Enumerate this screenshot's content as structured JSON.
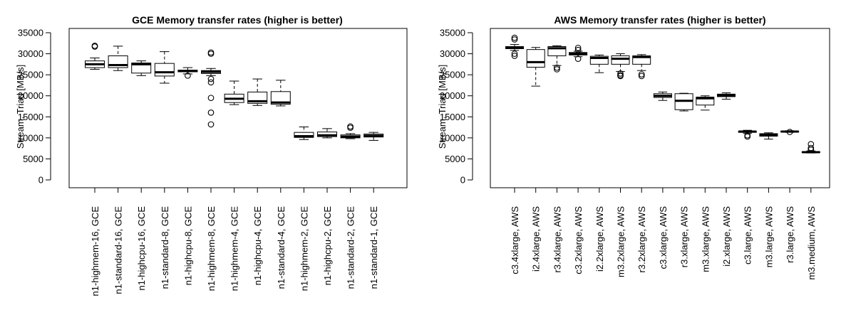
{
  "chart_data": [
    {
      "type": "boxplot",
      "title": "GCE Memory transfer rates (higher is better)",
      "ylabel": "Stream, Triad [MB/s]",
      "xlabel": "",
      "ylim": [
        0,
        35000
      ],
      "yticks": [
        0,
        5000,
        10000,
        15000,
        20000,
        25000,
        30000,
        35000
      ],
      "grid": false,
      "categories": [
        "n1-highmem-16, GCE",
        "n1-standard-16, GCE",
        "n1-highcpu-16, GCE",
        "n1-standard-8, GCE",
        "n1-highcpu-8, GCE",
        "n1-highmem-8, GCE",
        "n1-highmem-4, GCE",
        "n1-highcpu-4, GCE",
        "n1-standard-4, GCE",
        "n1-highmem-2, GCE",
        "n1-highcpu-2, GCE",
        "n1-standard-2, GCE",
        "n1-standard-1, GCE"
      ],
      "boxes": [
        {
          "min": 26300,
          "q1": 26700,
          "median": 27500,
          "q3": 28300,
          "max": 29000,
          "outliers": [
            31700,
            31900
          ]
        },
        {
          "min": 26000,
          "q1": 26700,
          "median": 27300,
          "q3": 29500,
          "max": 31800,
          "outliers": []
        },
        {
          "min": 24800,
          "q1": 25400,
          "median": 27500,
          "q3": 27800,
          "max": 28300,
          "outliers": []
        },
        {
          "min": 23000,
          "q1": 24700,
          "median": 25600,
          "q3": 27700,
          "max": 30500,
          "outliers": []
        },
        {
          "min": 25200,
          "q1": 25700,
          "median": 25900,
          "q3": 26100,
          "max": 26700,
          "outliers": [
            24800
          ]
        },
        {
          "min": 24800,
          "q1": 25300,
          "median": 25700,
          "q3": 26000,
          "max": 26500,
          "outliers": [
            30000,
            30300,
            24000,
            23200,
            19500,
            16000,
            13200
          ]
        },
        {
          "min": 17900,
          "q1": 18400,
          "median": 19300,
          "q3": 20400,
          "max": 23500,
          "outliers": []
        },
        {
          "min": 17700,
          "q1": 18200,
          "median": 18700,
          "q3": 20900,
          "max": 24000,
          "outliers": []
        },
        {
          "min": 17600,
          "q1": 18000,
          "median": 18400,
          "q3": 21000,
          "max": 23700,
          "outliers": []
        },
        {
          "min": 9600,
          "q1": 10100,
          "median": 10400,
          "q3": 11300,
          "max": 12600,
          "outliers": []
        },
        {
          "min": 10000,
          "q1": 10300,
          "median": 10600,
          "q3": 11400,
          "max": 12200,
          "outliers": []
        },
        {
          "min": 9800,
          "q1": 10000,
          "median": 10300,
          "q3": 10700,
          "max": 11000,
          "outliers": [
            12400,
            12700
          ]
        },
        {
          "min": 9400,
          "q1": 10200,
          "median": 10500,
          "q3": 10900,
          "max": 11300,
          "outliers": []
        }
      ]
    },
    {
      "type": "boxplot",
      "title": "AWS Memory transfer rates (higher is better)",
      "ylabel": "Stream, Triad [MB/s]",
      "xlabel": "",
      "ylim": [
        0,
        35000
      ],
      "yticks": [
        0,
        5000,
        10000,
        15000,
        20000,
        25000,
        30000,
        35000
      ],
      "grid": false,
      "categories": [
        "c3.4xlarge, AWS",
        "i2.4xlarge, AWS",
        "r3.4xlarge, AWS",
        "c3.2xlarge, AWS",
        "i2.2xlarge, AWS",
        "m3.2xlarge, AWS",
        "r3.2xlarge, AWS",
        "c3.xlarge, AWS",
        "r3.xlarge, AWS",
        "m3.xlarge, AWS",
        "i2.xlarge, AWS",
        "c3.large, AWS",
        "m3.large, AWS",
        "r3.large, AWS",
        "m3.medium, AWS"
      ],
      "boxes": [
        {
          "min": 30800,
          "q1": 31200,
          "median": 31500,
          "q3": 31700,
          "max": 32200,
          "outliers": [
            33800,
            33400,
            30000,
            29500
          ]
        },
        {
          "min": 22300,
          "q1": 26800,
          "median": 28000,
          "q3": 31000,
          "max": 31500,
          "outliers": []
        },
        {
          "min": 27200,
          "q1": 29500,
          "median": 31300,
          "q3": 31700,
          "max": 31900,
          "outliers": [
            26700,
            26300
          ]
        },
        {
          "min": 29300,
          "q1": 29700,
          "median": 30000,
          "q3": 30300,
          "max": 30600,
          "outliers": [
            31400,
            30900,
            28800
          ]
        },
        {
          "min": 25500,
          "q1": 27500,
          "median": 29000,
          "q3": 29400,
          "max": 29700,
          "outliers": []
        },
        {
          "min": 25800,
          "q1": 27500,
          "median": 28800,
          "q3": 29500,
          "max": 30000,
          "outliers": [
            25300,
            24900,
            24700
          ]
        },
        {
          "min": 26000,
          "q1": 27500,
          "median": 29200,
          "q3": 29500,
          "max": 29800,
          "outliers": [
            25100,
            24700
          ]
        },
        {
          "min": 18900,
          "q1": 19600,
          "median": 20000,
          "q3": 20500,
          "max": 20900,
          "outliers": []
        },
        {
          "min": 16400,
          "q1": 16700,
          "median": 18800,
          "q3": 20500,
          "max": 20600,
          "outliers": []
        },
        {
          "min": 16600,
          "q1": 17800,
          "median": 19400,
          "q3": 19700,
          "max": 20000,
          "outliers": []
        },
        {
          "min": 19200,
          "q1": 19800,
          "median": 20100,
          "q3": 20400,
          "max": 20700,
          "outliers": []
        },
        {
          "min": 11100,
          "q1": 11300,
          "median": 11500,
          "q3": 11600,
          "max": 11800,
          "outliers": [
            10600,
            10300
          ]
        },
        {
          "min": 9700,
          "q1": 10400,
          "median": 10700,
          "q3": 11000,
          "max": 11200,
          "outliers": []
        },
        {
          "min": 11300,
          "q1": 11400,
          "median": 11500,
          "q3": 11600,
          "max": 11700,
          "outliers": [
            11400
          ]
        },
        {
          "min": 6400,
          "q1": 6500,
          "median": 6600,
          "q3": 6700,
          "max": 6900,
          "outliers": [
            8500,
            7600,
            7200
          ]
        }
      ]
    }
  ]
}
